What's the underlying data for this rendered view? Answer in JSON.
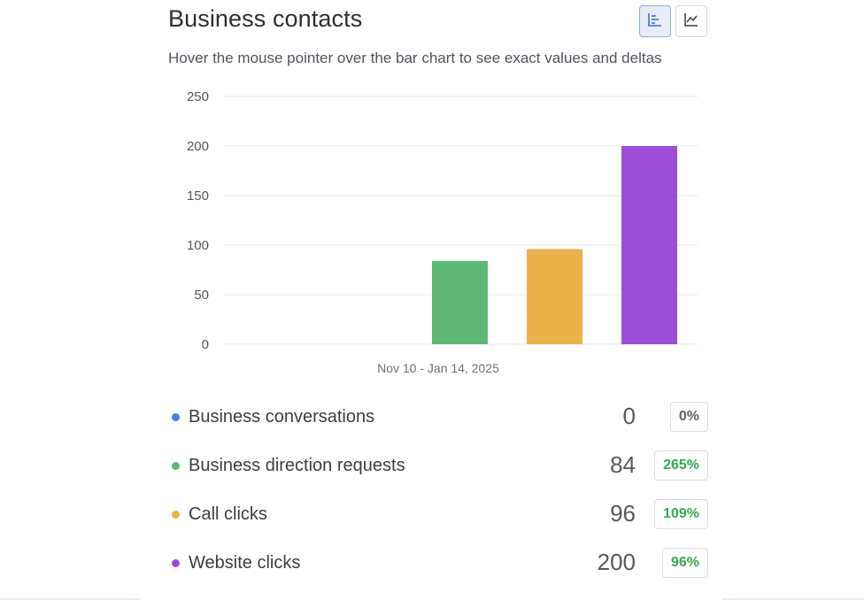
{
  "header": {
    "title": "Business contacts",
    "subtitle": "Hover the mouse pointer over the bar chart to see exact values and deltas"
  },
  "view_toggle": {
    "active": "bar",
    "buttons": [
      {
        "name": "bar-chart-view",
        "icon": "bar-chart-icon",
        "active": true
      },
      {
        "name": "line-chart-view",
        "icon": "line-chart-icon",
        "active": false
      }
    ]
  },
  "chart_data": {
    "type": "bar",
    "categories": [
      "Nov 10 - Jan 14, 2025"
    ],
    "series": [
      {
        "name": "Business conversations",
        "values": [
          0
        ],
        "color": "#4a7ef0"
      },
      {
        "name": "Business direction requests",
        "values": [
          84
        ],
        "color": "#5cb874"
      },
      {
        "name": "Call clicks",
        "values": [
          96
        ],
        "color": "#ebb14b"
      },
      {
        "name": "Website clicks",
        "values": [
          200
        ],
        "color": "#9d4ed8"
      }
    ],
    "ylim": [
      0,
      250
    ],
    "yticks": [
      0,
      50,
      100,
      150,
      200,
      250
    ],
    "grid": true,
    "xlabel": "",
    "ylabel": ""
  },
  "legend": [
    {
      "label": "Business conversations",
      "value": "0",
      "delta": "0%",
      "color": "#4a7ef0",
      "delta_type": "neutral"
    },
    {
      "label": "Business direction requests",
      "value": "84",
      "delta": "265%",
      "color": "#5cb874",
      "delta_type": "positive"
    },
    {
      "label": "Call clicks",
      "value": "96",
      "delta": "109%",
      "color": "#ebb14b",
      "delta_type": "positive"
    },
    {
      "label": "Website clicks",
      "value": "200",
      "delta": "96%",
      "color": "#9d4ed8",
      "delta_type": "positive"
    }
  ]
}
